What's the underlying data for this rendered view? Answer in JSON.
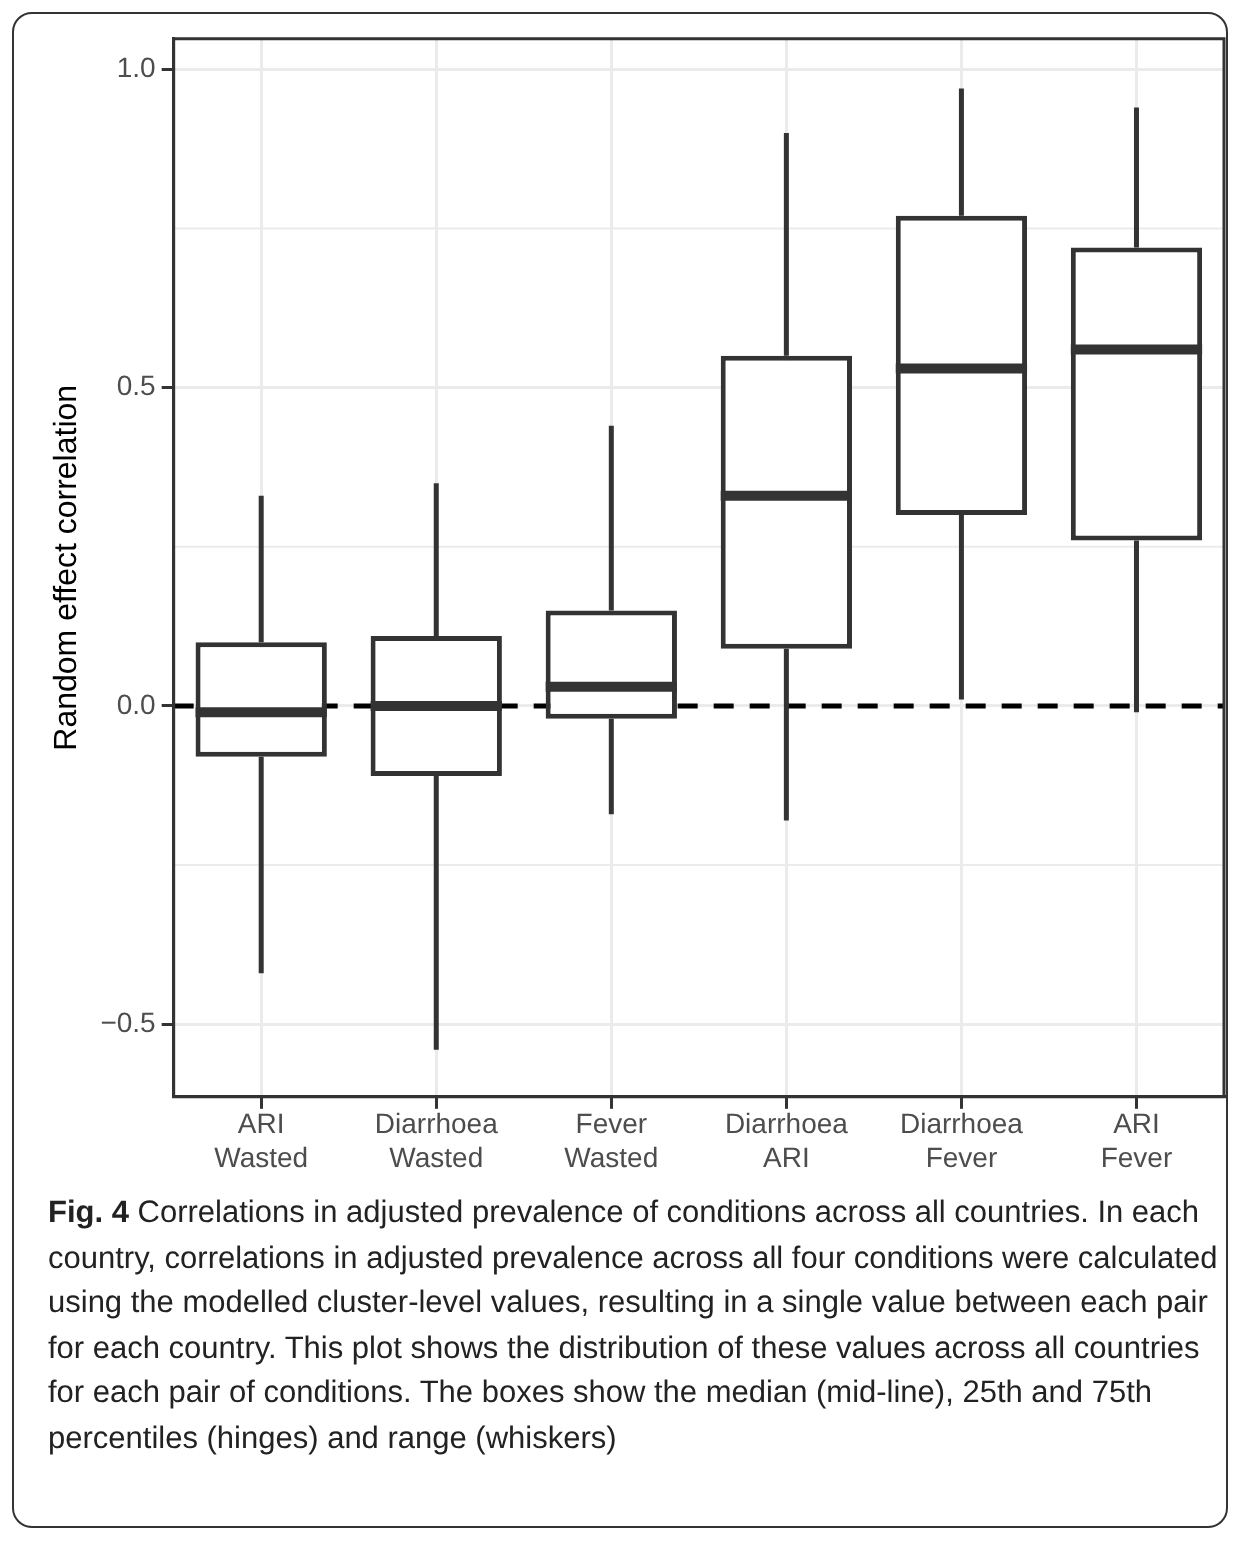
{
  "chart_data": {
    "type": "box",
    "ylabel": "Random effect correlation",
    "categories": [
      "ARI\nWasted",
      "Diarrhoea\nWasted",
      "Fever\nWasted",
      "Diarrhoea\nARI",
      "Diarrhoea\nFever",
      "ARI\nFever"
    ],
    "boxes": [
      {
        "low": -0.42,
        "q1": -0.08,
        "median": -0.01,
        "q3": 0.1,
        "high": 0.33
      },
      {
        "low": -0.54,
        "q1": -0.11,
        "median": 0.0,
        "q3": 0.11,
        "high": 0.35
      },
      {
        "low": -0.17,
        "q1": -0.02,
        "median": 0.03,
        "q3": 0.15,
        "high": 0.44
      },
      {
        "low": -0.18,
        "q1": 0.09,
        "median": 0.33,
        "q3": 0.55,
        "high": 0.9
      },
      {
        "low": 0.01,
        "q1": 0.3,
        "median": 0.53,
        "q3": 0.77,
        "high": 0.97
      },
      {
        "low": -0.01,
        "q1": 0.26,
        "median": 0.56,
        "q3": 0.72,
        "high": 0.94
      }
    ],
    "color": "#333333",
    "ylim": [
      -0.614,
      1.048
    ],
    "yticks": [
      {
        "value": -0.5,
        "label": "−0.5"
      },
      {
        "value": 0,
        "label": "0.0"
      },
      {
        "value": 0.5,
        "label": "0.5"
      },
      {
        "value": 1,
        "label": "1.0"
      }
    ],
    "grid": true,
    "legend": false,
    "ref_lines": [
      {
        "axis": "y",
        "value": 0,
        "color": "#000000",
        "line_style": "dashed"
      }
    ],
    "annotations": [
      "Fig. 4",
      "Correlations in adjusted prevalence of conditions across all countries. In each country, correlations in adjusted prevalence across all four conditions were calculated using the modelled cluster-level values, resulting in a single value between each pair for each country. This plot shows the distribution of these values across all countries for each pair of conditions. The boxes show the median (mid-line), 25th and 75th percentiles (hinges) and range (whiskers)"
    ]
  }
}
